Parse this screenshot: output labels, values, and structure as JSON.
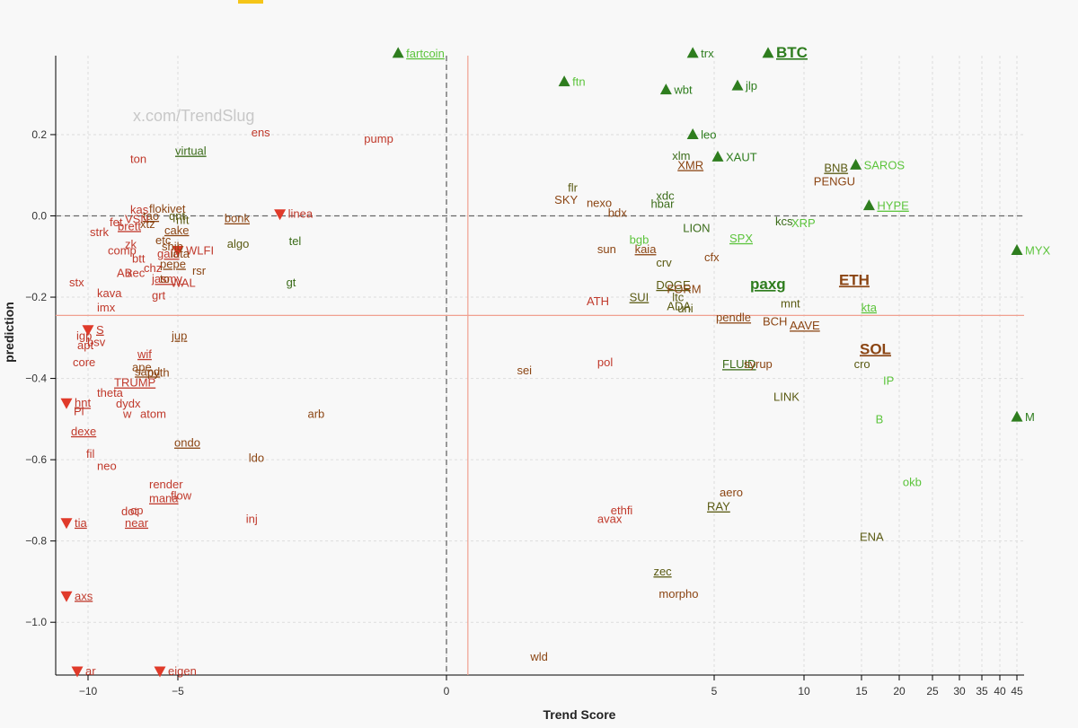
{
  "colors": {
    "strong_up": "#2e7d1e",
    "light_up": "#5cc43c",
    "down": "#e03a2a",
    "red_text": "#c0392b",
    "brown_text": "#8b4513",
    "olive_text": "#5a5a12",
    "dark_green_text": "#3b6c1a",
    "ref_line": "#f0a090",
    "zero_line": "#666666",
    "grid": "#dddddd"
  },
  "watermark": "x.com/TrendSlug",
  "chart_data": {
    "type": "scatter",
    "xlabel": "Trend Score",
    "ylabel": "prediction",
    "x_scale": "symlog-like",
    "x_ticks": [
      -10,
      -5,
      0,
      5,
      10,
      15,
      20,
      25,
      30,
      35,
      40,
      45
    ],
    "y_ticks": [
      0.2,
      0.0,
      -0.2,
      -0.4,
      -0.6,
      -0.8,
      -1.0
    ],
    "xlim": [
      -11.8,
      46
    ],
    "ylim": [
      -1.13,
      0.4
    ],
    "grid": true,
    "reference_lines": {
      "horizontal": 0.0,
      "vertical": 0.0,
      "ref_x": 0.4,
      "ref_y": -0.245
    },
    "points": [
      {
        "label": "fartcoin",
        "x": -0.9,
        "y": 0.4,
        "marker": "up",
        "color": "light_up",
        "underline": true
      },
      {
        "label": "trx",
        "x": 4.6,
        "y": 0.4,
        "marker": "up",
        "color": "strong_up"
      },
      {
        "label": "BTC",
        "x": 8.0,
        "y": 0.4,
        "marker": "up",
        "color": "strong_up",
        "bold": true,
        "underline": true,
        "size": 17
      },
      {
        "label": "ftn",
        "x": 2.2,
        "y": 0.33,
        "marker": "up",
        "color": "light_up"
      },
      {
        "label": "wbt",
        "x": 4.1,
        "y": 0.31,
        "marker": "up",
        "color": "strong_up"
      },
      {
        "label": "jlp",
        "x": 6.3,
        "y": 0.32,
        "marker": "up",
        "color": "strong_up"
      },
      {
        "label": "leo",
        "x": 4.6,
        "y": 0.2,
        "marker": "up",
        "color": "strong_up"
      },
      {
        "label": "XAUT",
        "x": 5.2,
        "y": 0.145,
        "marker": "up",
        "color": "strong_up"
      },
      {
        "label": "SAROS",
        "x": 14.5,
        "y": 0.125,
        "marker": "up",
        "color": "light_up"
      },
      {
        "label": "HYPE",
        "x": 16.0,
        "y": 0.025,
        "marker": "up",
        "color": "light_up",
        "underline": true
      },
      {
        "label": "MYX",
        "x": 45.0,
        "y": -0.085,
        "marker": "up",
        "color": "light_up"
      },
      {
        "label": "M",
        "x": 45.0,
        "y": -0.495,
        "marker": "up",
        "color": "strong_up"
      },
      {
        "label": "linea",
        "x": -3.1,
        "y": 0.005,
        "marker": "down",
        "color": "red_text"
      },
      {
        "label": "WLFI",
        "x": -5.0,
        "y": -0.085,
        "marker": "down",
        "color": "red_text"
      },
      {
        "label": "S",
        "x": -10.0,
        "y": -0.28,
        "marker": "down",
        "color": "red_text",
        "underline": true
      },
      {
        "label": "hnt",
        "x": -11.2,
        "y": -0.46,
        "marker": "down",
        "color": "red_text",
        "underline": true
      },
      {
        "label": "tia",
        "x": -11.2,
        "y": -0.755,
        "marker": "down",
        "color": "red_text",
        "underline": true
      },
      {
        "label": "axs",
        "x": -11.2,
        "y": -0.935,
        "marker": "down",
        "color": "red_text",
        "underline": true
      },
      {
        "label": "ar",
        "x": -10.6,
        "y": -1.12,
        "marker": "down",
        "color": "red_text"
      },
      {
        "label": "eigen",
        "x": -6.0,
        "y": -1.12,
        "marker": "down",
        "color": "red_text"
      },
      {
        "label": "ens",
        "x": -3.6,
        "y": 0.205,
        "color": "red_text"
      },
      {
        "label": "pump",
        "x": -1.5,
        "y": 0.19,
        "color": "red_text"
      },
      {
        "label": "virtual",
        "x": -5.05,
        "y": 0.16,
        "color": "dark_green_text",
        "underline": true
      },
      {
        "label": "ton",
        "x": -7.55,
        "y": 0.14,
        "color": "red_text"
      },
      {
        "label": "kas",
        "x": -7.55,
        "y": 0.015,
        "color": "red_text"
      },
      {
        "label": "flokivet",
        "x": -6.5,
        "y": 0.018,
        "color": "brown_text"
      },
      {
        "label": "tao",
        "x": -6.85,
        "y": 0.0,
        "color": "brown_text",
        "underline": true
      },
      {
        "label": "qnt",
        "x": -5.4,
        "y": 0.0,
        "color": "olive_text"
      },
      {
        "label": "nft",
        "x": -5.0,
        "y": -0.01,
        "color": "olive_text"
      },
      {
        "label": "bonk",
        "x": -4.1,
        "y": -0.006,
        "color": "brown_text",
        "underline": true
      },
      {
        "label": "fet",
        "x": -8.7,
        "y": -0.015,
        "color": "red_text"
      },
      {
        "label": "VSN",
        "x": -7.85,
        "y": -0.008,
        "color": "red_text"
      },
      {
        "label": "xtz",
        "x": -7.0,
        "y": -0.02,
        "color": "brown_text"
      },
      {
        "label": "brett",
        "x": -8.25,
        "y": -0.025,
        "color": "red_text",
        "underline": true
      },
      {
        "label": "cake",
        "x": -5.65,
        "y": -0.035,
        "color": "brown_text",
        "underline": true
      },
      {
        "label": "strk",
        "x": -9.8,
        "y": -0.04,
        "color": "red_text"
      },
      {
        "label": "etc",
        "x": -6.15,
        "y": -0.06,
        "color": "brown_text"
      },
      {
        "label": "algo",
        "x": -4.05,
        "y": -0.068,
        "color": "olive_text"
      },
      {
        "label": "tel",
        "x": -2.9,
        "y": -0.062,
        "color": "dark_green_text"
      },
      {
        "label": "zk",
        "x": -7.85,
        "y": -0.07,
        "color": "red_text"
      },
      {
        "label": "shib",
        "x": -5.8,
        "y": -0.075,
        "color": "brown_text"
      },
      {
        "label": "comp",
        "x": -8.8,
        "y": -0.085,
        "color": "red_text"
      },
      {
        "label": "gala",
        "x": -6.05,
        "y": -0.093,
        "color": "red_text",
        "underline": true
      },
      {
        "label": "iota",
        "x": -5.3,
        "y": -0.093,
        "color": "brown_text"
      },
      {
        "label": "btt",
        "x": -7.45,
        "y": -0.105,
        "color": "red_text"
      },
      {
        "label": "pepe",
        "x": -5.9,
        "y": -0.118,
        "color": "brown_text",
        "underline": true
      },
      {
        "label": "chz",
        "x": -6.8,
        "y": -0.128,
        "color": "red_text"
      },
      {
        "label": "rsr",
        "x": -4.7,
        "y": -0.135,
        "color": "brown_text"
      },
      {
        "label": "AB",
        "x": -8.3,
        "y": -0.14,
        "color": "red_text"
      },
      {
        "label": "xec",
        "x": -7.75,
        "y": -0.14,
        "color": "red_text"
      },
      {
        "label": "jasmy",
        "x": -6.35,
        "y": -0.155,
        "color": "red_text",
        "underline": true
      },
      {
        "label": "to",
        "x": -5.9,
        "y": -0.155,
        "color": "brown_text"
      },
      {
        "label": "stx",
        "x": -10.95,
        "y": -0.163,
        "color": "red_text"
      },
      {
        "label": "WAL",
        "x": -5.3,
        "y": -0.165,
        "color": "red_text"
      },
      {
        "label": "gt",
        "x": -2.95,
        "y": -0.163,
        "color": "dark_green_text"
      },
      {
        "label": "kava",
        "x": -9.4,
        "y": -0.19,
        "color": "red_text"
      },
      {
        "label": "grt",
        "x": -6.35,
        "y": -0.195,
        "color": "red_text"
      },
      {
        "label": "imx",
        "x": -9.4,
        "y": -0.225,
        "color": "red_text"
      },
      {
        "label": "jup",
        "x": -5.25,
        "y": -0.295,
        "color": "brown_text",
        "underline": true
      },
      {
        "label": "igp",
        "x": -10.55,
        "y": -0.295,
        "color": "red_text"
      },
      {
        "label": "bsv",
        "x": -9.95,
        "y": -0.31,
        "color": "red_text"
      },
      {
        "label": "apt",
        "x": -10.5,
        "y": -0.318,
        "color": "red_text"
      },
      {
        "label": "core",
        "x": -10.75,
        "y": -0.36,
        "color": "red_text"
      },
      {
        "label": "wif",
        "x": -7.15,
        "y": -0.34,
        "color": "red_text",
        "underline": true
      },
      {
        "label": "ape",
        "x": -7.45,
        "y": -0.372,
        "color": "brown_text"
      },
      {
        "label": "sand",
        "x": -7.3,
        "y": -0.383,
        "color": "brown_text",
        "underline": true
      },
      {
        "label": "pyth",
        "x": -6.6,
        "y": -0.385,
        "color": "brown_text"
      },
      {
        "label": "TRUMP",
        "x": -8.45,
        "y": -0.41,
        "color": "red_text",
        "underline": true
      },
      {
        "label": "theta",
        "x": -9.4,
        "y": -0.435,
        "color": "red_text"
      },
      {
        "label": "dydx",
        "x": -8.35,
        "y": -0.462,
        "color": "red_text"
      },
      {
        "label": "Pl",
        "x": -10.7,
        "y": -0.48,
        "color": "red_text"
      },
      {
        "label": "w",
        "x": -7.95,
        "y": -0.487,
        "color": "red_text"
      },
      {
        "label": "atom",
        "x": -7.0,
        "y": -0.487,
        "color": "red_text"
      },
      {
        "label": "arb",
        "x": -2.55,
        "y": -0.487,
        "color": "brown_text"
      },
      {
        "label": "dexe",
        "x": -10.85,
        "y": -0.53,
        "color": "red_text",
        "underline": true
      },
      {
        "label": "ondo",
        "x": -5.1,
        "y": -0.558,
        "color": "brown_text",
        "underline": true
      },
      {
        "label": "fil",
        "x": -10.0,
        "y": -0.585,
        "color": "red_text"
      },
      {
        "label": "ldo",
        "x": -3.65,
        "y": -0.595,
        "color": "brown_text"
      },
      {
        "label": "neo",
        "x": -9.4,
        "y": -0.615,
        "color": "red_text"
      },
      {
        "label": "render",
        "x": -6.5,
        "y": -0.66,
        "color": "red_text"
      },
      {
        "label": "flow",
        "x": -5.3,
        "y": -0.688,
        "color": "red_text"
      },
      {
        "label": "mana",
        "x": -6.5,
        "y": -0.695,
        "color": "red_text",
        "underline": true
      },
      {
        "label": "dot",
        "x": -8.05,
        "y": -0.727,
        "color": "red_text"
      },
      {
        "label": "op",
        "x": -7.55,
        "y": -0.725,
        "color": "red_text"
      },
      {
        "label": "near",
        "x": -7.85,
        "y": -0.755,
        "color": "red_text",
        "underline": true
      },
      {
        "label": "inj",
        "x": -3.7,
        "y": -0.745,
        "color": "red_text"
      },
      {
        "label": "flr",
        "x": 2.3,
        "y": 0.07,
        "color": "olive_text"
      },
      {
        "label": "SKY",
        "x": 2.05,
        "y": 0.04,
        "color": "brown_text"
      },
      {
        "label": "nexo",
        "x": 2.65,
        "y": 0.032,
        "color": "brown_text"
      },
      {
        "label": "bdx",
        "x": 3.05,
        "y": 0.008,
        "color": "brown_text"
      },
      {
        "label": "xlm",
        "x": 4.25,
        "y": 0.148,
        "color": "dark_green_text"
      },
      {
        "label": "XMR",
        "x": 4.35,
        "y": 0.125,
        "color": "brown_text",
        "underline": true
      },
      {
        "label": "xdc",
        "x": 3.95,
        "y": 0.05,
        "color": "dark_green_text"
      },
      {
        "label": "hbar",
        "x": 3.85,
        "y": 0.03,
        "color": "dark_green_text"
      },
      {
        "label": "LION",
        "x": 4.45,
        "y": -0.03,
        "color": "dark_green_text"
      },
      {
        "label": "bgb",
        "x": 3.45,
        "y": -0.058,
        "color": "light_up"
      },
      {
        "label": "sun",
        "x": 2.85,
        "y": -0.082,
        "color": "brown_text"
      },
      {
        "label": "kaia",
        "x": 3.55,
        "y": -0.082,
        "color": "brown_text",
        "underline": true
      },
      {
        "label": "crv",
        "x": 3.95,
        "y": -0.115,
        "color": "olive_text"
      },
      {
        "label": "cfx",
        "x": 4.85,
        "y": -0.102,
        "color": "brown_text"
      },
      {
        "label": "SPX",
        "x": 5.95,
        "y": -0.055,
        "color": "light_up",
        "underline": true
      },
      {
        "label": "paxg",
        "x": 7.1,
        "y": -0.17,
        "color": "strong_up",
        "bold": true,
        "underline": true,
        "size": 17
      },
      {
        "label": "DOGE",
        "x": 3.95,
        "y": -0.17,
        "color": "olive_text",
        "underline": true
      },
      {
        "label": "FORM",
        "x": 4.15,
        "y": -0.18,
        "color": "brown_text"
      },
      {
        "label": "SUI",
        "x": 3.45,
        "y": -0.2,
        "color": "olive_text",
        "underline": true
      },
      {
        "label": "ltc",
        "x": 4.25,
        "y": -0.2,
        "color": "olive_text"
      },
      {
        "label": "ATH",
        "x": 2.65,
        "y": -0.21,
        "color": "red_text"
      },
      {
        "label": "ADA",
        "x": 4.15,
        "y": -0.222,
        "color": "olive_text"
      },
      {
        "label": "uni",
        "x": 4.35,
        "y": -0.228,
        "color": "olive_text"
      },
      {
        "label": "pendle",
        "x": 5.2,
        "y": -0.25,
        "color": "brown_text",
        "underline": true
      },
      {
        "label": "kcs",
        "x": 8.5,
        "y": -0.013,
        "color": "dark_green_text"
      },
      {
        "label": "XRP",
        "x": 9.4,
        "y": -0.018,
        "color": "light_up"
      },
      {
        "label": "BNB",
        "x": 11.9,
        "y": 0.118,
        "color": "olive_text",
        "underline": true
      },
      {
        "label": "PENGU",
        "x": 11.0,
        "y": 0.085,
        "color": "brown_text"
      },
      {
        "label": "ETH",
        "x": 13.2,
        "y": -0.16,
        "color": "brown_text",
        "bold": true,
        "underline": true,
        "size": 17
      },
      {
        "label": "mnt",
        "x": 8.8,
        "y": -0.215,
        "color": "olive_text"
      },
      {
        "label": "kta",
        "x": 15.2,
        "y": -0.225,
        "color": "light_up",
        "underline": true
      },
      {
        "label": "BCH",
        "x": 7.8,
        "y": -0.26,
        "color": "brown_text"
      },
      {
        "label": "AAVE",
        "x": 9.3,
        "y": -0.27,
        "color": "brown_text",
        "underline": true
      },
      {
        "label": "SOL",
        "x": 15.0,
        "y": -0.33,
        "color": "brown_text",
        "bold": true,
        "underline": true,
        "size": 17
      },
      {
        "label": "FLUID",
        "x": 5.55,
        "y": -0.365,
        "color": "dark_green_text",
        "underline": true
      },
      {
        "label": "syrup",
        "x": 6.75,
        "y": -0.365,
        "color": "brown_text"
      },
      {
        "label": "cro",
        "x": 14.5,
        "y": -0.365,
        "color": "olive_text"
      },
      {
        "label": "IP",
        "x": 18.1,
        "y": -0.405,
        "color": "light_up"
      },
      {
        "label": "LINK",
        "x": 8.4,
        "y": -0.445,
        "color": "olive_text"
      },
      {
        "label": "B",
        "x": 17.1,
        "y": -0.5,
        "color": "light_up"
      },
      {
        "label": "sei",
        "x": 1.35,
        "y": -0.38,
        "color": "brown_text"
      },
      {
        "label": "pol",
        "x": 2.85,
        "y": -0.36,
        "color": "red_text"
      },
      {
        "label": "okb",
        "x": 20.8,
        "y": -0.655,
        "color": "light_up"
      },
      {
        "label": "aero",
        "x": 5.4,
        "y": -0.68,
        "color": "brown_text"
      },
      {
        "label": "RAY",
        "x": 4.9,
        "y": -0.715,
        "color": "olive_text",
        "underline": true
      },
      {
        "label": "ethfi",
        "x": 3.1,
        "y": -0.725,
        "color": "red_text"
      },
      {
        "label": "avax",
        "x": 2.85,
        "y": -0.745,
        "color": "red_text"
      },
      {
        "label": "ENA",
        "x": 15.0,
        "y": -0.79,
        "color": "olive_text"
      },
      {
        "label": "zec",
        "x": 3.9,
        "y": -0.875,
        "color": "olive_text",
        "underline": true
      },
      {
        "label": "morpho",
        "x": 4.0,
        "y": -0.93,
        "color": "brown_text"
      },
      {
        "label": "wld",
        "x": 1.6,
        "y": -1.085,
        "color": "brown_text"
      }
    ]
  }
}
